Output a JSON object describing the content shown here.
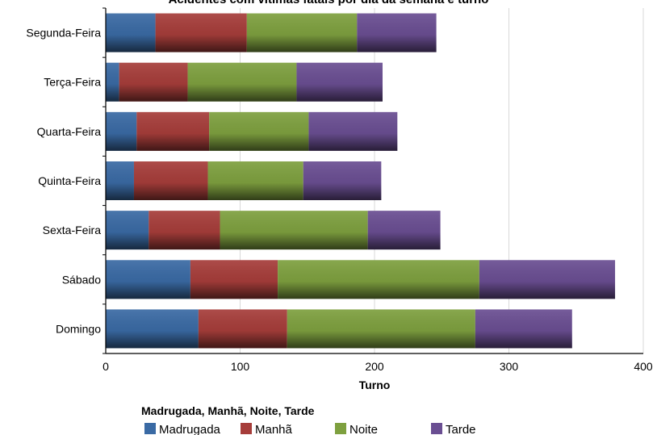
{
  "chart_data": {
    "type": "bar",
    "orientation": "horizontal",
    "stacked": true,
    "title": "Acidentes com vítimas fatais por dia da semana e turno",
    "xlabel": "Turno",
    "ylabel": "",
    "xlim": [
      0,
      400
    ],
    "xticks": [
      0,
      100,
      200,
      300,
      400
    ],
    "grid": true,
    "legend_title": "Madrugada, Manhã, Noite, Tarde",
    "legend_position": "bottom",
    "categories": [
      "Segunda-Feira",
      "Terça-Feira",
      "Quarta-Feira",
      "Quinta-Feira",
      "Sexta-Feira",
      "Sábado",
      "Domingo"
    ],
    "series": [
      {
        "name": "Madrugada",
        "color": "#3a6aa4",
        "values": [
          37,
          10,
          23,
          21,
          32,
          63,
          69
        ]
      },
      {
        "name": "Manhã",
        "color": "#a63d3a",
        "values": [
          68,
          51,
          54,
          55,
          53,
          65,
          66
        ]
      },
      {
        "name": "Noite",
        "color": "#7ea03f",
        "values": [
          82,
          81,
          74,
          71,
          110,
          150,
          140
        ]
      },
      {
        "name": "Tarde",
        "color": "#6a4e92",
        "values": [
          59,
          64,
          66,
          58,
          54,
          101,
          72
        ]
      }
    ]
  }
}
